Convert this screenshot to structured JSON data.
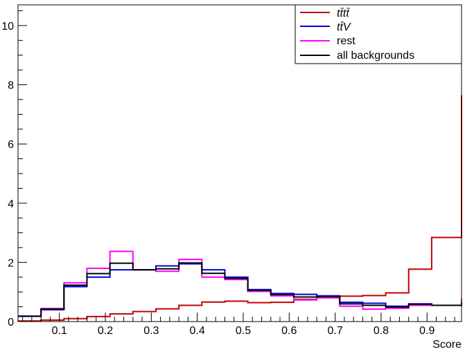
{
  "chart_data": {
    "type": "histogram-step",
    "xlabel": "Score",
    "ylabel": "",
    "xlim": [
      0.01,
      0.975
    ],
    "ylim": [
      0,
      10.7
    ],
    "bin_edges": [
      0.01,
      0.06,
      0.11,
      0.16,
      0.21,
      0.26,
      0.31,
      0.36,
      0.41,
      0.46,
      0.51,
      0.56,
      0.61,
      0.66,
      0.71,
      0.76,
      0.81,
      0.86,
      0.91,
      0.975
    ],
    "x_ticks": [
      "0.1",
      "0.2",
      "0.3",
      "0.4",
      "0.5",
      "0.6",
      "0.7",
      "0.8",
      "0.9"
    ],
    "x_tick_values": [
      0.1,
      0.2,
      0.3,
      0.4,
      0.5,
      0.6,
      0.7,
      0.8,
      0.9
    ],
    "y_ticks": [
      "0",
      "2",
      "4",
      "6",
      "8",
      "10"
    ],
    "y_tick_values": [
      0,
      2,
      4,
      6,
      8,
      10
    ],
    "series": [
      {
        "name": "t t̄ t t̄",
        "color": "#c00000",
        "values": [
          0.02,
          0.05,
          0.1,
          0.17,
          0.26,
          0.34,
          0.43,
          0.55,
          0.66,
          0.69,
          0.64,
          0.65,
          0.75,
          0.83,
          0.86,
          0.88,
          0.97,
          1.77,
          2.84,
          7.64
        ]
      },
      {
        "name": "t t̄ V",
        "color": "#0000dd",
        "values": [
          0.18,
          0.4,
          1.18,
          1.5,
          1.75,
          1.75,
          1.88,
          1.95,
          1.75,
          1.5,
          1.08,
          0.95,
          0.92,
          0.87,
          0.65,
          0.62,
          0.52,
          0.6,
          0.55,
          0.6
        ]
      },
      {
        "name": "rest",
        "color": "#ff00ff",
        "values": [
          0.18,
          0.44,
          1.31,
          1.8,
          2.37,
          1.75,
          1.7,
          2.1,
          1.5,
          1.42,
          1.02,
          0.87,
          0.73,
          0.8,
          0.52,
          0.42,
          0.45,
          0.55,
          0.55,
          0.78
        ]
      },
      {
        "name": "all backgrounds",
        "color": "#000000",
        "values": [
          0.18,
          0.42,
          1.23,
          1.62,
          1.97,
          1.75,
          1.78,
          1.98,
          1.63,
          1.46,
          1.05,
          0.91,
          0.83,
          0.84,
          0.6,
          0.55,
          0.49,
          0.58,
          0.55,
          0.64
        ]
      }
    ],
    "legend": {
      "placement": "top-right",
      "entries": [
        "t t̄ t t̄",
        "t t̄ V",
        "rest",
        "all backgrounds"
      ]
    }
  }
}
